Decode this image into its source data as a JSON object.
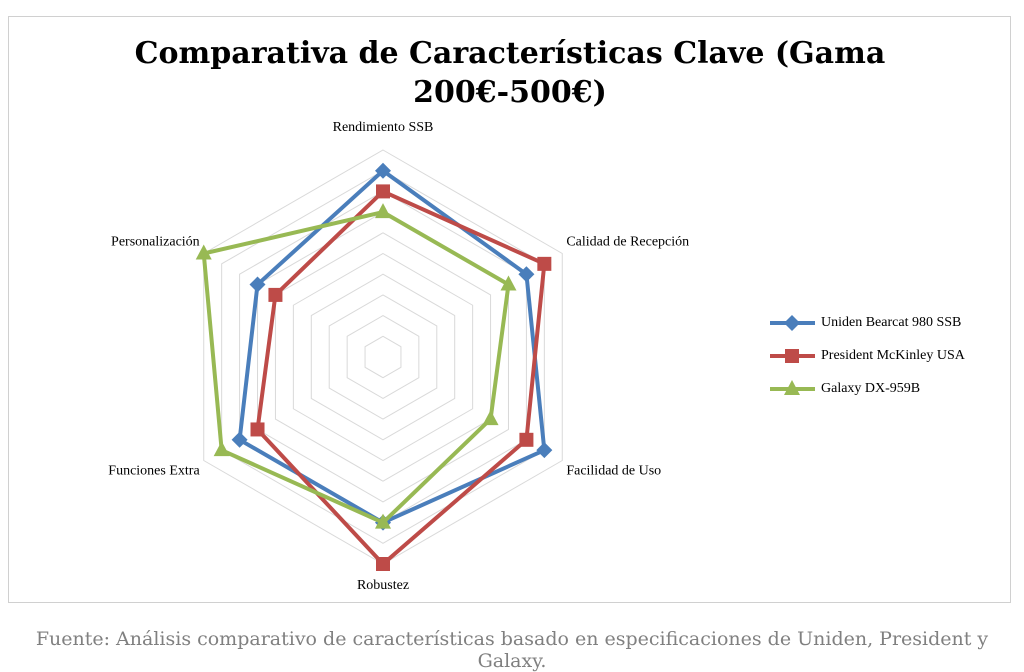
{
  "chart_data": {
    "type": "radar",
    "title": "Comparativa de Características Clave (Gama 200€-500€)",
    "categories": [
      "Rendimiento SSB",
      "Calidad de Recepción",
      "Facilidad de Uso",
      "Robustez",
      "Funciones Extra",
      "Personalización"
    ],
    "series": [
      {
        "name": "Uniden Bearcat 980 SSB",
        "color": "#4a7ebb",
        "marker": "diamond",
        "values": [
          9,
          8,
          9,
          8,
          8,
          7
        ]
      },
      {
        "name": "President McKinley USA",
        "color": "#be4b48",
        "marker": "square",
        "values": [
          8,
          9,
          8,
          10,
          7,
          6
        ]
      },
      {
        "name": "Galaxy DX-959B",
        "color": "#98b954",
        "marker": "triangle",
        "values": [
          7,
          7,
          6,
          8,
          9,
          10
        ]
      }
    ],
    "rlim": [
      0,
      10
    ],
    "rticks": [
      1,
      2,
      3,
      4,
      5,
      6,
      7,
      8,
      9,
      10
    ],
    "grid": true,
    "legend": "right"
  },
  "caption": "Fuente: Análisis comparativo de características basado en especificaciones de Uniden, President y Galaxy."
}
